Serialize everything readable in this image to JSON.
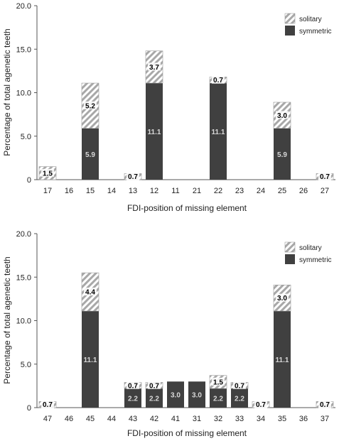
{
  "chart_data": [
    {
      "type": "bar",
      "stacked": true,
      "title": "",
      "xlabel": "FDI-position of missing element",
      "ylabel": "Percentage of total agenetic teeth",
      "ylim": [
        0,
        20
      ],
      "yticks": [
        "0",
        "5.0",
        "10.0",
        "15.0",
        "20.0"
      ],
      "grid": false,
      "legend": "top-right",
      "categories": [
        "17",
        "16",
        "15",
        "14",
        "13",
        "12",
        "11",
        "21",
        "22",
        "23",
        "24",
        "25",
        "26",
        "27"
      ],
      "series": [
        {
          "name": "symmetric",
          "color": "#404040",
          "values": [
            0,
            0,
            5.9,
            0,
            0,
            11.1,
            0,
            0,
            11.1,
            0,
            0,
            5.9,
            0,
            0
          ],
          "labels": [
            "",
            "",
            "5.9",
            "",
            "",
            "11.1",
            "",
            "",
            "11.1",
            "",
            "",
            "5.9",
            "",
            ""
          ]
        },
        {
          "name": "solitary",
          "color": "#a8a8a8",
          "pattern": "diagonal-hatch",
          "values": [
            1.5,
            0,
            5.2,
            0,
            0.7,
            3.7,
            0,
            0,
            0.7,
            0,
            0,
            3.0,
            0,
            0.7
          ],
          "labels": [
            "1.5",
            "",
            "5.2",
            "",
            "0.7",
            "3.7",
            "",
            "",
            "0.7",
            "",
            "",
            "3.0",
            "",
            "0.7"
          ]
        }
      ]
    },
    {
      "type": "bar",
      "stacked": true,
      "title": "",
      "xlabel": "FDI-position of missing element",
      "ylabel": "Percentage of total agenetic teeth",
      "ylim": [
        0,
        20
      ],
      "yticks": [
        "0",
        "5.0",
        "10.0",
        "15.0",
        "20.0"
      ],
      "grid": false,
      "legend": "top-right",
      "categories": [
        "47",
        "46",
        "45",
        "44",
        "43",
        "42",
        "41",
        "31",
        "32",
        "33",
        "34",
        "35",
        "36",
        "37"
      ],
      "series": [
        {
          "name": "symmetric",
          "color": "#404040",
          "values": [
            0,
            0,
            11.1,
            0,
            2.2,
            2.2,
            3.0,
            3.0,
            2.2,
            2.2,
            0,
            11.1,
            0,
            0
          ],
          "labels": [
            "",
            "",
            "11.1",
            "",
            "2.2",
            "2.2",
            "3.0",
            "3.0",
            "2.2",
            "2.2",
            "",
            "11.1",
            "",
            ""
          ]
        },
        {
          "name": "solitary",
          "color": "#a8a8a8",
          "pattern": "diagonal-hatch",
          "values": [
            0.7,
            0,
            4.4,
            0,
            0.7,
            0.7,
            0,
            0,
            1.5,
            0.7,
            0.7,
            3.0,
            0,
            0.7
          ],
          "labels": [
            "0.7",
            "",
            "4.4",
            "",
            "0.7",
            "0.7",
            "",
            "",
            "1.5",
            "0.7",
            "0.7",
            "3.0",
            "",
            "0.7"
          ]
        }
      ]
    }
  ]
}
